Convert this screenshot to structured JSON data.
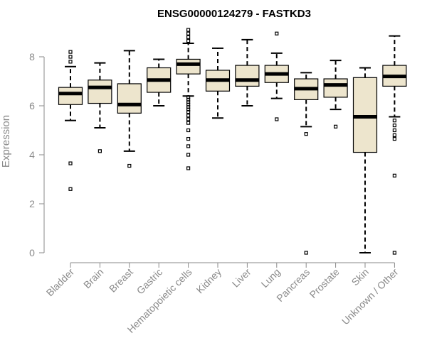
{
  "colors": {
    "box_fill": "#ede5cd",
    "box_stroke": "#000000",
    "axis": "#8a8a8a",
    "label": "#8a8a8a",
    "title": "#000000"
  },
  "chart_data": {
    "type": "boxplot",
    "title": "ENSG00000124279 - FASTKD3",
    "xlabel": "",
    "ylabel": "Expression",
    "ylim": [
      0,
      9.2
    ],
    "yticks": [
      0,
      2,
      4,
      6,
      8
    ],
    "grid": false,
    "categories": [
      "Bladder",
      "Brain",
      "Breast",
      "Gastric",
      "Hematopoietic cells",
      "Kidney",
      "Liver",
      "Lung",
      "Pancreas",
      "Prostate",
      "Skin",
      "Unknown / Other"
    ],
    "boxes": [
      {
        "q1": 6.05,
        "median": 6.5,
        "q3": 6.75,
        "whisker_low": 5.4,
        "whisker_high": 7.6,
        "outliers": [
          8.2,
          8.0,
          7.8,
          3.65,
          2.6
        ]
      },
      {
        "q1": 6.1,
        "median": 6.75,
        "q3": 7.05,
        "whisker_low": 5.1,
        "whisker_high": 7.75,
        "outliers": [
          4.15
        ]
      },
      {
        "q1": 5.7,
        "median": 6.05,
        "q3": 6.9,
        "whisker_low": 4.15,
        "whisker_high": 8.25,
        "outliers": [
          3.55
        ]
      },
      {
        "q1": 6.55,
        "median": 7.05,
        "q3": 7.55,
        "whisker_low": 6.0,
        "whisker_high": 7.9,
        "outliers": []
      },
      {
        "q1": 7.3,
        "median": 7.7,
        "q3": 7.9,
        "whisker_low": 6.4,
        "whisker_high": 8.55,
        "outliers": [
          9.1,
          8.95,
          8.8,
          8.65,
          6.35,
          6.25,
          6.15,
          6.05,
          5.95,
          5.85,
          5.75,
          5.6,
          5.45,
          5.3,
          5.0,
          4.65,
          4.35,
          4.0,
          3.45
        ]
      },
      {
        "q1": 6.6,
        "median": 7.05,
        "q3": 7.45,
        "whisker_low": 5.5,
        "whisker_high": 8.35,
        "outliers": []
      },
      {
        "q1": 6.8,
        "median": 7.05,
        "q3": 7.65,
        "whisker_low": 6.0,
        "whisker_high": 8.7,
        "outliers": []
      },
      {
        "q1": 6.95,
        "median": 7.3,
        "q3": 7.65,
        "whisker_low": 6.3,
        "whisker_high": 8.15,
        "outliers": [
          8.95,
          5.45
        ]
      },
      {
        "q1": 6.25,
        "median": 6.7,
        "q3": 7.1,
        "whisker_low": 5.15,
        "whisker_high": 7.35,
        "outliers": [
          4.85,
          0.0
        ]
      },
      {
        "q1": 6.35,
        "median": 6.85,
        "q3": 7.1,
        "whisker_low": 5.85,
        "whisker_high": 7.85,
        "outliers": [
          5.15
        ]
      },
      {
        "q1": 4.1,
        "median": 5.55,
        "q3": 7.15,
        "whisker_low": 0.0,
        "whisker_high": 7.55,
        "outliers": []
      },
      {
        "q1": 6.8,
        "median": 7.2,
        "q3": 7.65,
        "whisker_low": 5.55,
        "whisker_high": 8.85,
        "outliers": [
          5.4,
          5.2,
          5.0,
          4.8,
          4.65,
          3.15,
          0.0
        ]
      }
    ]
  }
}
